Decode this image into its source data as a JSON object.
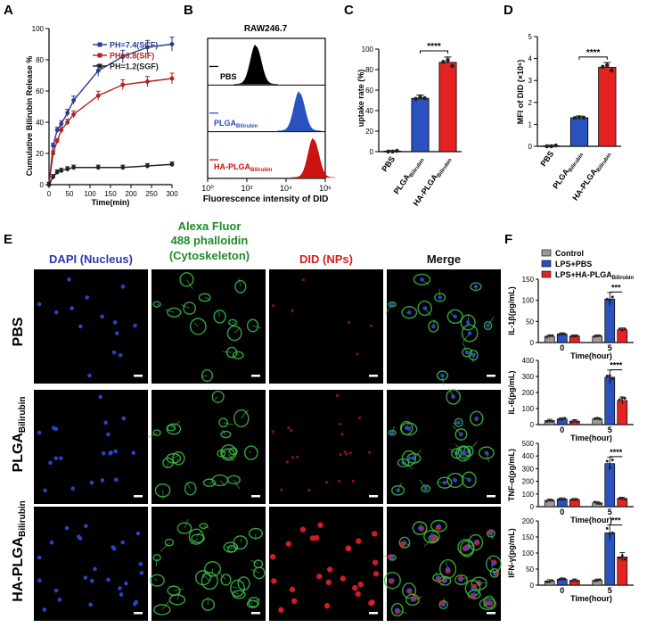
{
  "panel_letters": {
    "a": "A",
    "b": "B",
    "c": "C",
    "d": "D",
    "e": "E",
    "f": "F"
  },
  "chart_data": [
    {
      "id": "A",
      "type": "line",
      "ylabel": "Cumulative Bilirubin Release %",
      "xlabel": "Time(min)",
      "xlim": [
        0,
        300
      ],
      "ylim": [
        0,
        100
      ],
      "xticks": [
        0,
        50,
        100,
        150,
        200,
        250,
        300
      ],
      "yticks": [
        0,
        20,
        40,
        60,
        80,
        100
      ],
      "legend": "top-right",
      "series": [
        {
          "name": "PH=7.4(SCF)",
          "color": "#2b3a8f",
          "x": [
            0,
            10,
            20,
            30,
            45,
            60,
            120,
            180,
            240,
            300
          ],
          "y": [
            0,
            25,
            35,
            39,
            46,
            54,
            73,
            82,
            88,
            90
          ]
        },
        {
          "name": "PH=6.8(SIF)",
          "color": "#b22222",
          "x": [
            0,
            10,
            20,
            30,
            45,
            60,
            120,
            180,
            240,
            300
          ],
          "y": [
            0,
            20,
            28,
            35,
            40,
            45,
            57,
            64,
            66,
            68
          ]
        },
        {
          "name": "PH=1.2(SGF)",
          "color": "#222222",
          "x": [
            0,
            10,
            20,
            30,
            45,
            60,
            120,
            180,
            240,
            300
          ],
          "y": [
            0,
            5,
            8,
            9,
            10,
            11,
            11,
            11,
            12,
            13
          ]
        }
      ]
    },
    {
      "id": "B",
      "type": "area",
      "title": "RAW246.7",
      "xlabel": "Fluorescence intensity of DID",
      "xticks": [
        "10⁰",
        "10²",
        "10⁴",
        "10⁶"
      ],
      "series": [
        {
          "name": "PBS",
          "color": "#000000"
        },
        {
          "name": "PLGA",
          "sub": "Bilirubin",
          "color": "#2a52be"
        },
        {
          "name": "HA-PLGA",
          "sub": "Bilirubin",
          "color": "#cc1111"
        }
      ]
    },
    {
      "id": "C",
      "type": "bar",
      "ylabel": "uptake rate (%)",
      "ylim": [
        0,
        100
      ],
      "yticks": [
        0,
        20,
        40,
        60,
        80,
        100
      ],
      "categories": [
        {
          "name": "PBS",
          "sub": ""
        },
        {
          "name": "PLGA",
          "sub": "Bilirubin"
        },
        {
          "name": "HA-PLGA",
          "sub": "Bilirubin"
        }
      ],
      "values": [
        0.5,
        52,
        87
      ],
      "colors": [
        "#9a9a9a",
        "#2a52be",
        "#e52222"
      ],
      "annotation": "****"
    },
    {
      "id": "D",
      "type": "bar",
      "ylabel": "MFI of DID (×10⁶)",
      "ylim": [
        0,
        5
      ],
      "yticks": [
        0,
        1,
        2,
        3,
        4,
        5
      ],
      "categories": [
        {
          "name": "PBS",
          "sub": ""
        },
        {
          "name": "PLGA",
          "sub": "Bilirubin"
        },
        {
          "name": "HA-PLGA",
          "sub": "Bilirubin"
        }
      ],
      "values": [
        0.02,
        1.3,
        3.6
      ],
      "colors": [
        "#9a9a9a",
        "#2a52be",
        "#e52222"
      ],
      "annotation": "****"
    },
    {
      "id": "F1",
      "type": "bar",
      "ylabel": "IL-1β(pg/mL)",
      "xlabel": "Time(hour)",
      "ylim": [
        0,
        150
      ],
      "yticks": [
        0,
        50,
        100,
        150
      ],
      "categories": [
        "0",
        "5"
      ],
      "series": [
        {
          "name": "Control",
          "values": [
            15,
            15
          ]
        },
        {
          "name": "LPS+PBS",
          "values": [
            20,
            103
          ]
        },
        {
          "name": "LPS+HA-PLGA",
          "sub": "Bilirubin",
          "values": [
            15,
            30
          ]
        }
      ],
      "annotation": "***"
    },
    {
      "id": "F2",
      "type": "bar",
      "ylabel": "IL-6(pg/mL)",
      "xlabel": "Time(hour)",
      "ylim": [
        0,
        400
      ],
      "yticks": [
        0,
        100,
        200,
        300,
        400
      ],
      "categories": [
        "0",
        "5"
      ],
      "series": [
        {
          "name": "Control",
          "values": [
            25,
            35
          ]
        },
        {
          "name": "LPS+PBS",
          "values": [
            35,
            295
          ]
        },
        {
          "name": "LPS+HA-PLGA",
          "sub": "Bilirubin",
          "values": [
            22,
            150
          ]
        }
      ],
      "annotation": "****"
    },
    {
      "id": "F3",
      "type": "bar",
      "ylabel": "TNF-α(pg/mL)",
      "xlabel": "Time(hour)",
      "ylim": [
        0,
        500
      ],
      "yticks": [
        0,
        100,
        200,
        300,
        400,
        500
      ],
      "categories": [
        "0",
        "5"
      ],
      "series": [
        {
          "name": "Control",
          "values": [
            50,
            30
          ]
        },
        {
          "name": "LPS+PBS",
          "values": [
            60,
            340
          ]
        },
        {
          "name": "LPS+HA-PLGA",
          "sub": "Bilirubin",
          "values": [
            55,
            65
          ]
        }
      ],
      "annotation": "****"
    },
    {
      "id": "F4",
      "type": "bar",
      "ylabel": "IFN-γ(pg/mL)",
      "xlabel": "Time(hour)",
      "ylim": [
        0,
        200
      ],
      "yticks": [
        0,
        50,
        100,
        150,
        200
      ],
      "categories": [
        "0",
        "5"
      ],
      "series": [
        {
          "name": "Control",
          "values": [
            13,
            15
          ]
        },
        {
          "name": "LPS+PBS",
          "values": [
            18,
            163
          ]
        },
        {
          "name": "LPS+HA-PLGA",
          "sub": "Bilirubin",
          "values": [
            15,
            88
          ]
        }
      ],
      "annotation": "***"
    }
  ],
  "panel_f_legend": [
    {
      "name": "Control",
      "sub": "",
      "color": "#9a9a9a"
    },
    {
      "name": "LPS+PBS",
      "sub": "",
      "color": "#2a52be"
    },
    {
      "name": "LPS+HA-PLGA",
      "sub": "Bilirubin",
      "color": "#e52222"
    }
  ],
  "panel_e": {
    "col1": "DAPI (Nucleus)",
    "col2_line1": "Alexa Fluor",
    "col2_line2": "488 phalloidin",
    "col2_line3": "(Cytoskeleton)",
    "col3": "DID (NPs)",
    "col4": "Merge",
    "rows": [
      {
        "name": "PBS",
        "sub": ""
      },
      {
        "name": "PLGA",
        "sub": "Bilirubin"
      },
      {
        "name": "HA-PLGA",
        "sub": "Bilirubin"
      }
    ],
    "colors": {
      "dapi": "#2a4cd8",
      "actin": "#3cc04a",
      "did": "#e0202a"
    }
  }
}
